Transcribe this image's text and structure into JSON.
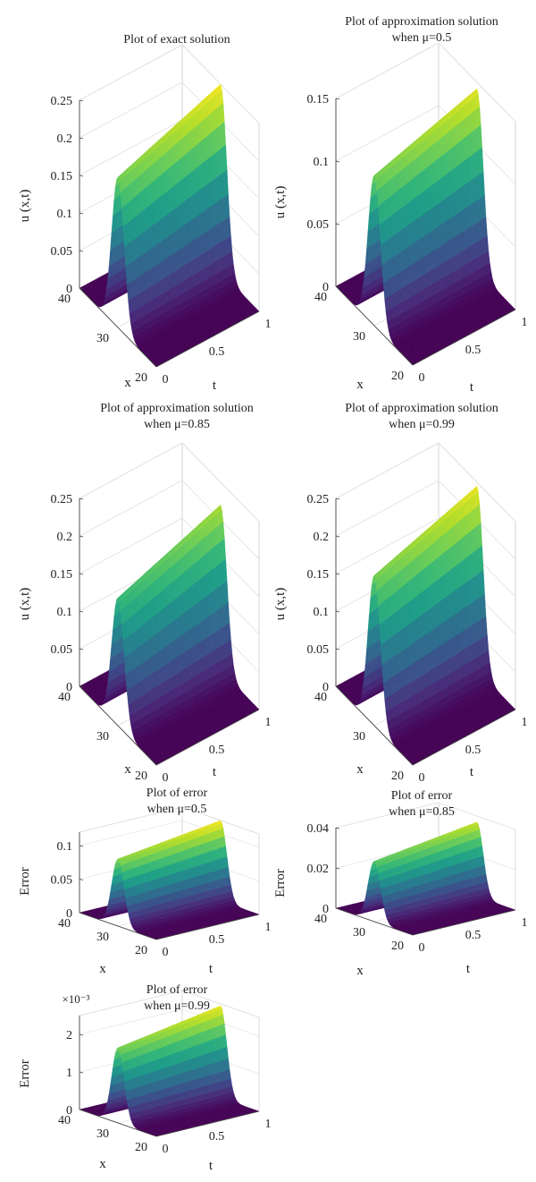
{
  "chart_data": [
    {
      "type": "surface",
      "title": [
        "Plot of exact solution"
      ],
      "xlabel": "x",
      "ylabel": "t",
      "zlabel": "u (x,t)",
      "xlim": [
        20,
        40
      ],
      "ylim": [
        0,
        1
      ],
      "zlim": [
        0,
        0.25
      ],
      "x_ticks": [
        "20",
        "30",
        "40"
      ],
      "y_ticks": [
        "0",
        "0.5",
        "1"
      ],
      "z_ticks": [
        "0",
        "0.05",
        "0.1",
        "0.15",
        "0.2",
        "0.25"
      ],
      "peak": {
        "x": 30,
        "t_start": 0.2,
        "z_start": 0.2,
        "z_end": 0.25
      }
    },
    {
      "type": "surface",
      "title": [
        "Plot of approximation solution",
        "when μ=0.5"
      ],
      "xlabel": "x",
      "ylabel": "t",
      "zlabel": "u (x,t)",
      "xlim": [
        20,
        40
      ],
      "ylim": [
        0,
        1
      ],
      "zlim": [
        0,
        0.15
      ],
      "x_ticks": [
        "20",
        "30",
        "40"
      ],
      "y_ticks": [
        "0",
        "0.5",
        "1"
      ],
      "z_ticks": [
        "0",
        "0.05",
        "0.1",
        "0.15"
      ],
      "peak": {
        "x": 30,
        "t_start": 0.2,
        "z_start": 0.12,
        "z_end": 0.145
      }
    },
    {
      "type": "surface",
      "title": [
        "Plot of approximation solution",
        "when μ=0.85"
      ],
      "xlabel": "x",
      "ylabel": "t",
      "zlabel": "u (x,t)",
      "xlim": [
        20,
        40
      ],
      "ylim": [
        0,
        1
      ],
      "zlim": [
        0,
        0.25
      ],
      "x_ticks": [
        "20",
        "30",
        "40"
      ],
      "y_ticks": [
        "0",
        "0.5",
        "1"
      ],
      "z_ticks": [
        "0",
        "0.05",
        "0.1",
        "0.15",
        "0.2",
        "0.25"
      ],
      "peak": {
        "x": 30,
        "t_start": 0.2,
        "z_start": 0.17,
        "z_end": 0.22
      }
    },
    {
      "type": "surface",
      "title": [
        "Plot of approximation solution",
        "when μ=0.99"
      ],
      "xlabel": "x",
      "ylabel": "t",
      "zlabel": "u (x,t)",
      "xlim": [
        20,
        40
      ],
      "ylim": [
        0,
        1
      ],
      "zlim": [
        0,
        0.25
      ],
      "x_ticks": [
        "20",
        "30",
        "40"
      ],
      "y_ticks": [
        "0",
        "0.5",
        "1"
      ],
      "z_ticks": [
        "0",
        "0.05",
        "0.1",
        "0.15",
        "0.2",
        "0.25"
      ],
      "peak": {
        "x": 30,
        "t_start": 0.2,
        "z_start": 0.2,
        "z_end": 0.245
      }
    },
    {
      "type": "surface",
      "title": [
        "Plot of error",
        "when μ=0.5"
      ],
      "xlabel": "x",
      "ylabel": "t",
      "zlabel": "Error",
      "xlim": [
        20,
        40
      ],
      "ylim": [
        0,
        1
      ],
      "zlim": [
        0,
        0.12
      ],
      "x_ticks": [
        "20",
        "30",
        "40"
      ],
      "y_ticks": [
        "0",
        "0.5",
        "1"
      ],
      "z_ticks": [
        "0",
        "0.05",
        "0.1"
      ],
      "peak": {
        "x": 30,
        "t_start": 0.2,
        "z_start": 0.1,
        "z_end": 0.12
      }
    },
    {
      "type": "surface",
      "title": [
        "Plot of error",
        "when μ=0.85"
      ],
      "xlabel": "x",
      "ylabel": "t",
      "zlabel": "Error",
      "xlim": [
        20,
        40
      ],
      "ylim": [
        0,
        1
      ],
      "zlim": [
        0,
        0.04
      ],
      "x_ticks": [
        "20",
        "30",
        "40"
      ],
      "y_ticks": [
        "0",
        "0.5",
        "1"
      ],
      "z_ticks": [
        "0",
        "0.02",
        "0.04"
      ],
      "peak": {
        "x": 30,
        "t_start": 0.2,
        "z_start": 0.03,
        "z_end": 0.037
      }
    },
    {
      "type": "surface",
      "title": [
        "Plot of error",
        "when μ=0.99"
      ],
      "xlabel": "x",
      "ylabel": "t",
      "zlabel": "Error",
      "exponent_label": "×10⁻³",
      "xlim": [
        20,
        40
      ],
      "ylim": [
        0,
        1
      ],
      "zlim": [
        0,
        2.5
      ],
      "x_ticks": [
        "20",
        "30",
        "40"
      ],
      "y_ticks": [
        "0",
        "0.5",
        "1"
      ],
      "z_ticks": [
        "0",
        "1",
        "2"
      ],
      "peak": {
        "x": 30,
        "t_start": 0.2,
        "z_start": 2.0,
        "z_end": 2.45
      }
    }
  ]
}
